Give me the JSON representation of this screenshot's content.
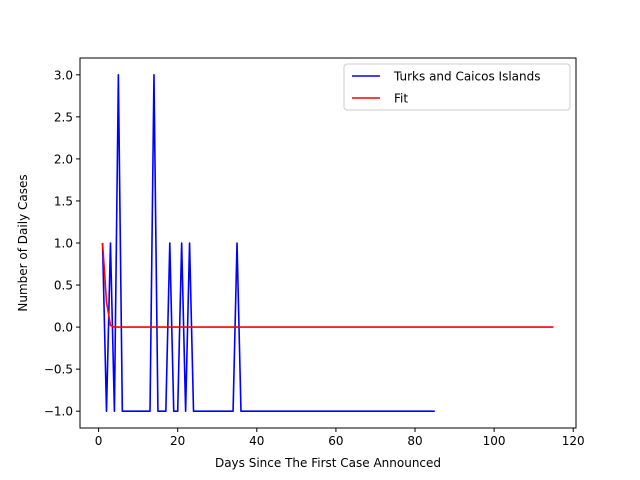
{
  "chart_data": {
    "type": "line",
    "title": "",
    "xlabel": "Days Since The First Case Announced",
    "ylabel": "Number of Daily Cases",
    "xlim": [
      -4.7,
      120.7
    ],
    "ylim": [
      -1.2,
      3.2
    ],
    "xticks": [
      0,
      20,
      40,
      60,
      80,
      100,
      120
    ],
    "yticks": [
      -1.0,
      -0.5,
      0.0,
      0.5,
      1.0,
      1.5,
      2.0,
      2.5,
      3.0
    ],
    "xtick_labels": [
      "0",
      "20",
      "40",
      "60",
      "80",
      "100",
      "120"
    ],
    "ytick_labels": [
      "−1.0",
      "−0.5",
      "0.0",
      "0.5",
      "1.0",
      "1.5",
      "2.0",
      "2.5",
      "3.0"
    ],
    "grid": false,
    "legend": "top-right",
    "series": [
      {
        "name": "Turks and Caicos Islands",
        "color": "#0000ff",
        "x": [
          1,
          2,
          3,
          4,
          5,
          6,
          7,
          8,
          9,
          10,
          11,
          12,
          13,
          14,
          15,
          16,
          17,
          18,
          19,
          20,
          21,
          22,
          23,
          24,
          25,
          26,
          27,
          28,
          29,
          30,
          31,
          32,
          33,
          34,
          35,
          36,
          37,
          38,
          39,
          40,
          41,
          42,
          43,
          44,
          45,
          46,
          47,
          48,
          49,
          50,
          51,
          52,
          53,
          54,
          55,
          56,
          57,
          58,
          59,
          60,
          61,
          62,
          63,
          64,
          65,
          66,
          67,
          68,
          69,
          70,
          71,
          72,
          73,
          74,
          75,
          76,
          77,
          78,
          79,
          80,
          81,
          82,
          83,
          84,
          85
        ],
        "y": [
          1,
          -1,
          1,
          -1,
          3,
          -1,
          -1,
          -1,
          -1,
          -1,
          -1,
          -1,
          -1,
          3,
          -1,
          -1,
          -1,
          1,
          -1,
          -1,
          1,
          -1,
          1,
          -1,
          -1,
          -1,
          -1,
          -1,
          -1,
          -1,
          -1,
          -1,
          -1,
          -1,
          1,
          -1,
          -1,
          -1,
          -1,
          -1,
          -1,
          -1,
          -1,
          -1,
          -1,
          -1,
          -1,
          -1,
          -1,
          -1,
          -1,
          -1,
          -1,
          -1,
          -1,
          -1,
          -1,
          -1,
          -1,
          -1,
          -1,
          -1,
          -1,
          -1,
          -1,
          -1,
          -1,
          -1,
          -1,
          -1,
          -1,
          -1,
          -1,
          -1,
          -1,
          -1,
          -1,
          -1,
          -1,
          -1,
          -1,
          -1,
          -1,
          -1,
          -1
        ]
      },
      {
        "name": "Fit",
        "color": "#ff0000",
        "x": [
          1,
          2,
          3,
          4,
          5,
          115
        ],
        "y": [
          1,
          0.3,
          0.02,
          0,
          0,
          0
        ]
      }
    ]
  }
}
